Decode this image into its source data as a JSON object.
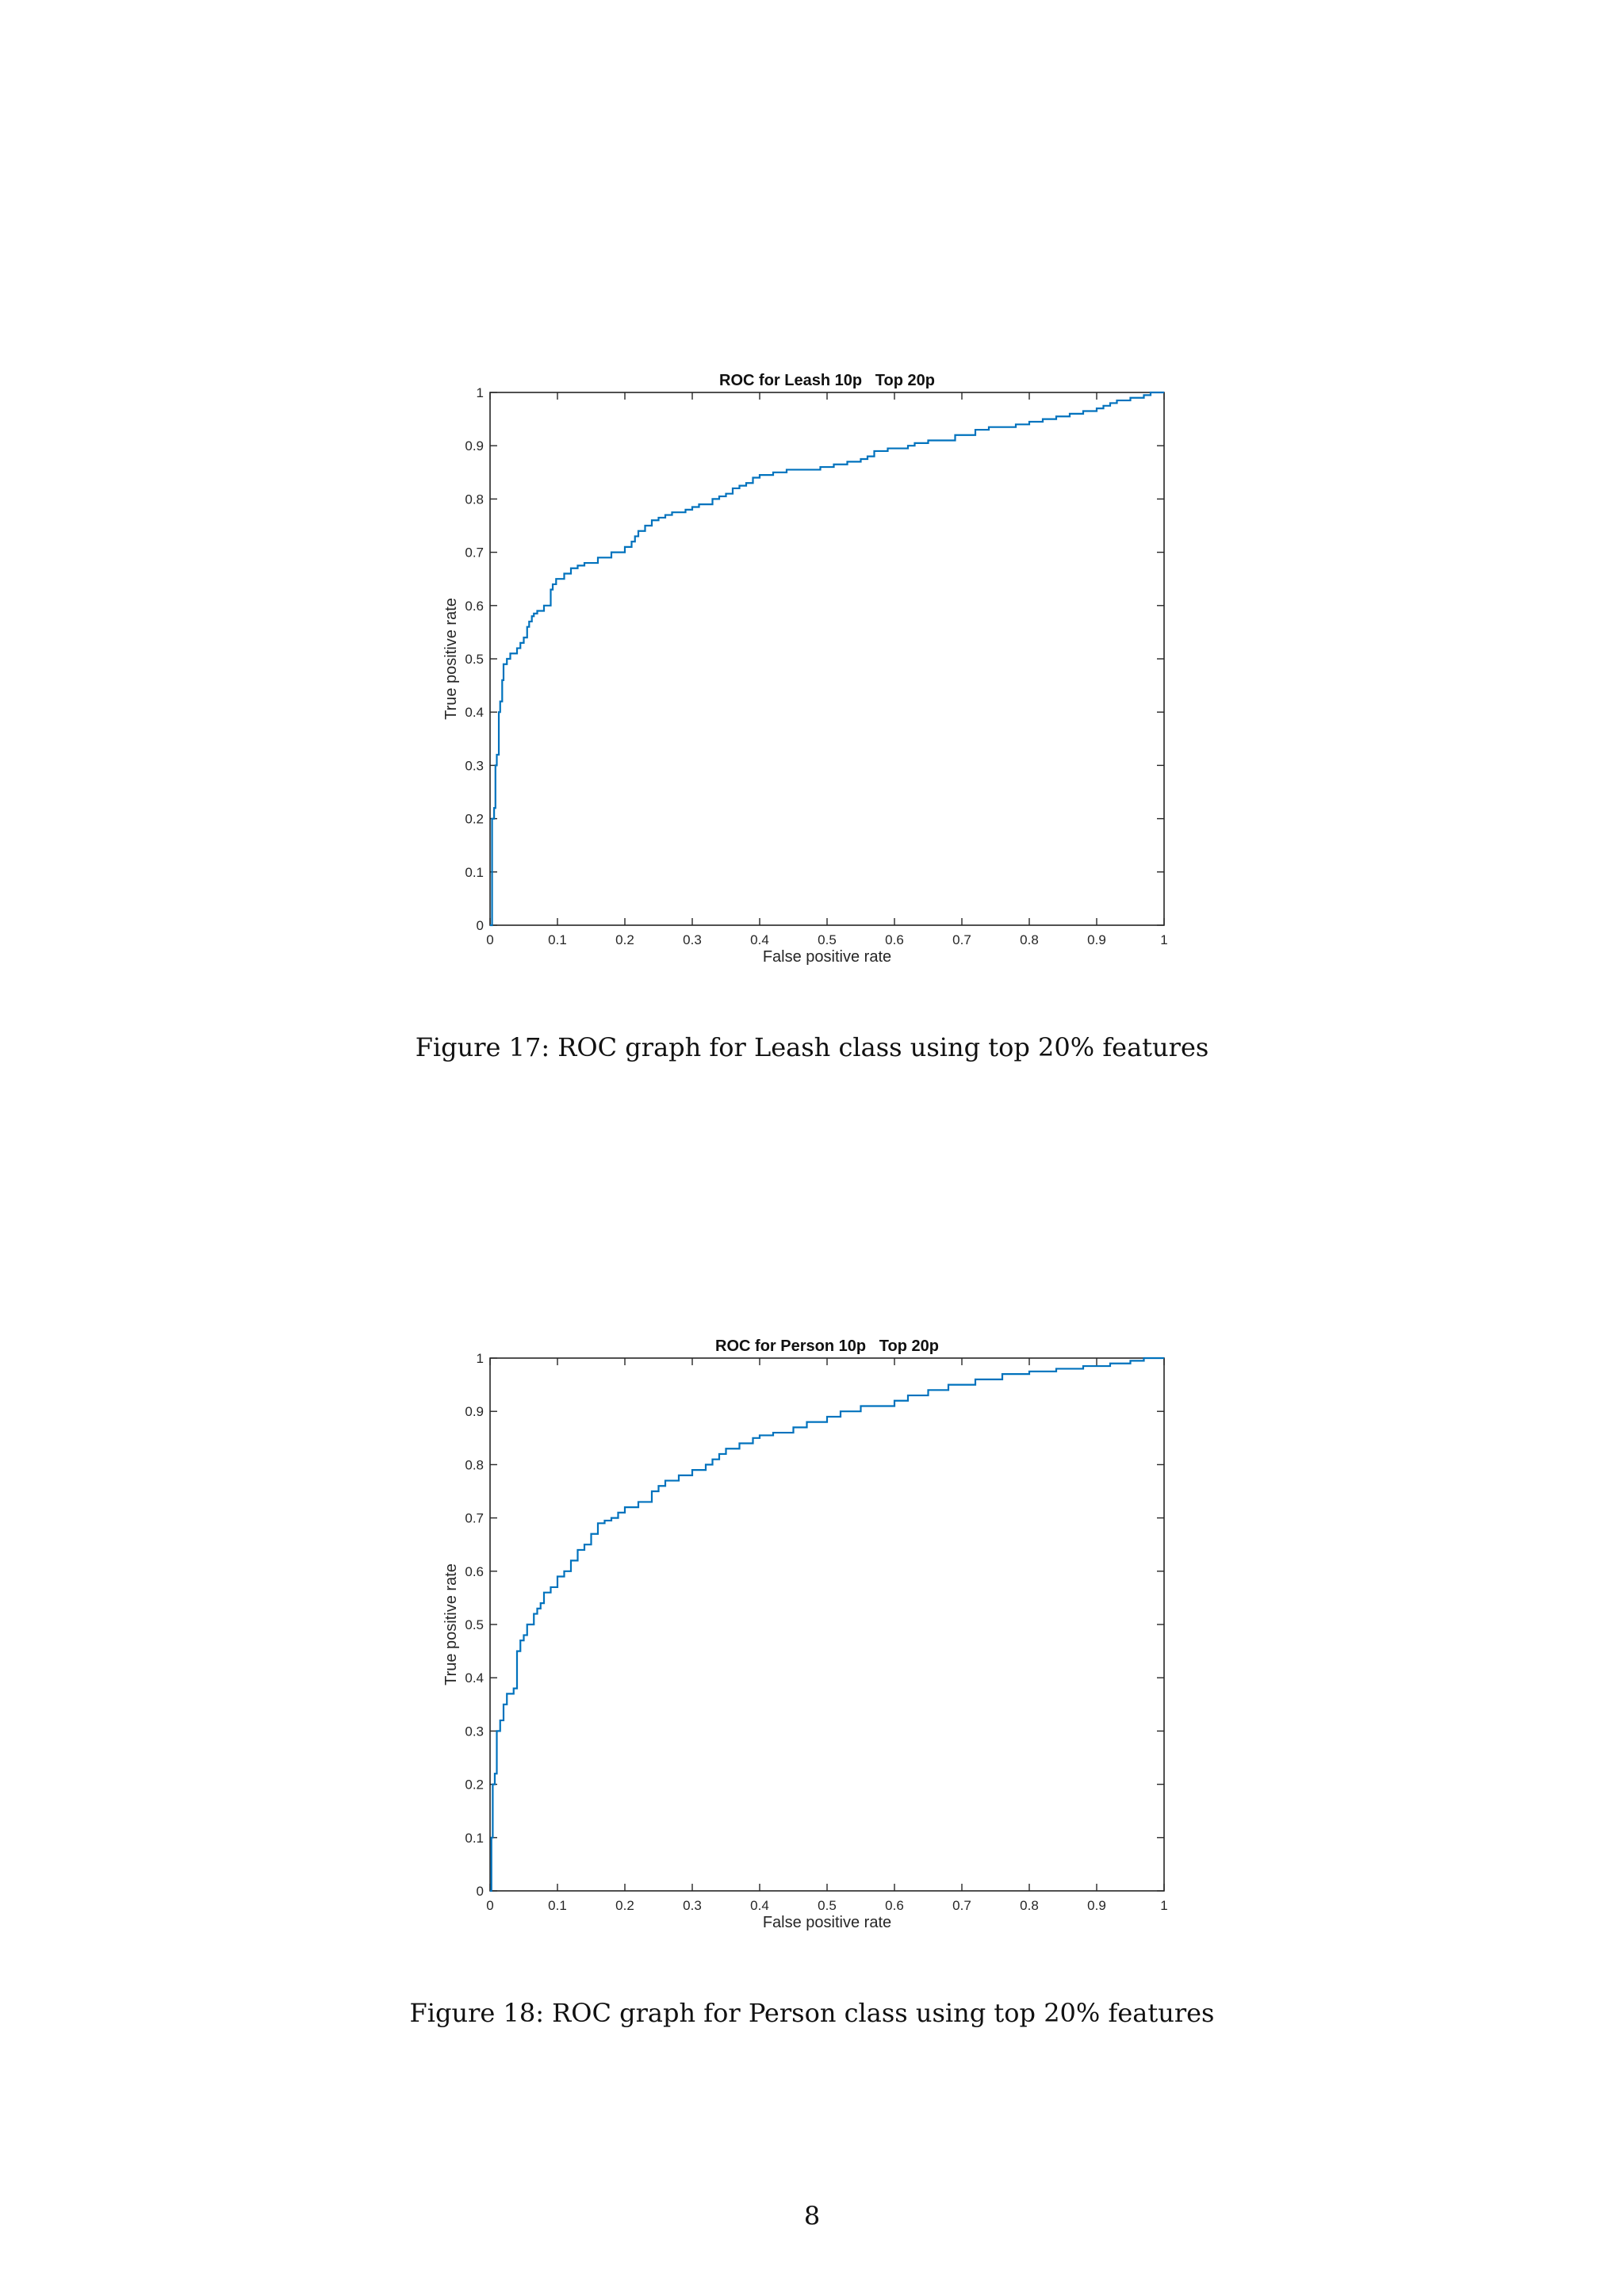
{
  "page_number": "8",
  "figures": [
    {
      "caption": "Figure 17: ROC graph for Leash class using top 20% features"
    },
    {
      "caption": "Figure 18: ROC graph for Person class using top 20% features"
    }
  ],
  "chart_data": [
    {
      "type": "line",
      "title": "ROC for Leash 10p   Top 20p",
      "xlabel": "False positive rate",
      "ylabel": "True positive rate",
      "xlim": [
        0,
        1
      ],
      "ylim": [
        0,
        1
      ],
      "xticks": [
        "0",
        "0.1",
        "0.2",
        "0.3",
        "0.4",
        "0.5",
        "0.6",
        "0.7",
        "0.8",
        "0.9",
        "1"
      ],
      "yticks": [
        "0",
        "0.1",
        "0.2",
        "0.3",
        "0.4",
        "0.5",
        "0.6",
        "0.7",
        "0.8",
        "0.9",
        "1"
      ],
      "grid": false,
      "line_color": "#0072BD",
      "series": [
        {
          "step": true,
          "x": [
            0,
            0.003,
            0.006,
            0.008,
            0.01,
            0.013,
            0.015,
            0.018,
            0.02,
            0.025,
            0.03,
            0.04,
            0.045,
            0.05,
            0.055,
            0.058,
            0.062,
            0.065,
            0.07,
            0.08,
            0.09,
            0.093,
            0.098,
            0.11,
            0.12,
            0.13,
            0.14,
            0.16,
            0.18,
            0.2,
            0.21,
            0.215,
            0.22,
            0.23,
            0.24,
            0.25,
            0.26,
            0.27,
            0.29,
            0.3,
            0.31,
            0.33,
            0.34,
            0.35,
            0.36,
            0.37,
            0.38,
            0.39,
            0.4,
            0.42,
            0.44,
            0.46,
            0.49,
            0.51,
            0.53,
            0.55,
            0.56,
            0.57,
            0.59,
            0.62,
            0.63,
            0.65,
            0.69,
            0.72,
            0.74,
            0.78,
            0.8,
            0.82,
            0.84,
            0.86,
            0.88,
            0.9,
            0.91,
            0.92,
            0.93,
            0.95,
            0.97,
            0.98,
            1
          ],
          "y": [
            0,
            0.2,
            0.22,
            0.3,
            0.32,
            0.4,
            0.42,
            0.46,
            0.49,
            0.5,
            0.51,
            0.52,
            0.53,
            0.54,
            0.56,
            0.57,
            0.58,
            0.585,
            0.59,
            0.6,
            0.63,
            0.64,
            0.65,
            0.66,
            0.67,
            0.675,
            0.68,
            0.69,
            0.7,
            0.71,
            0.72,
            0.73,
            0.74,
            0.75,
            0.76,
            0.765,
            0.77,
            0.775,
            0.78,
            0.785,
            0.79,
            0.8,
            0.805,
            0.81,
            0.82,
            0.825,
            0.83,
            0.84,
            0.845,
            0.85,
            0.855,
            0.855,
            0.86,
            0.865,
            0.87,
            0.875,
            0.88,
            0.89,
            0.895,
            0.9,
            0.905,
            0.91,
            0.92,
            0.93,
            0.935,
            0.94,
            0.945,
            0.95,
            0.955,
            0.96,
            0.965,
            0.97,
            0.975,
            0.98,
            0.985,
            0.99,
            0.995,
            1,
            1
          ]
        }
      ]
    },
    {
      "type": "line",
      "title": "ROC for Person 10p   Top 20p",
      "xlabel": "False positive rate",
      "ylabel": "True positive rate",
      "xlim": [
        0,
        1
      ],
      "ylim": [
        0,
        1
      ],
      "xticks": [
        "0",
        "0.1",
        "0.2",
        "0.3",
        "0.4",
        "0.5",
        "0.6",
        "0.7",
        "0.8",
        "0.9",
        "1"
      ],
      "yticks": [
        "0",
        "0.1",
        "0.2",
        "0.3",
        "0.4",
        "0.5",
        "0.6",
        "0.7",
        "0.8",
        "0.9",
        "1"
      ],
      "grid": false,
      "line_color": "#0072BD",
      "series": [
        {
          "step": true,
          "x": [
            0,
            0.002,
            0.004,
            0.007,
            0.01,
            0.015,
            0.02,
            0.025,
            0.035,
            0.04,
            0.045,
            0.05,
            0.055,
            0.065,
            0.07,
            0.075,
            0.08,
            0.09,
            0.1,
            0.11,
            0.12,
            0.13,
            0.14,
            0.15,
            0.16,
            0.17,
            0.18,
            0.19,
            0.2,
            0.22,
            0.24,
            0.25,
            0.26,
            0.28,
            0.3,
            0.32,
            0.33,
            0.34,
            0.35,
            0.37,
            0.39,
            0.4,
            0.42,
            0.45,
            0.47,
            0.5,
            0.52,
            0.55,
            0.6,
            0.62,
            0.65,
            0.68,
            0.72,
            0.76,
            0.8,
            0.84,
            0.88,
            0.92,
            0.95,
            0.97,
            1
          ],
          "y": [
            0,
            0.1,
            0.2,
            0.22,
            0.3,
            0.32,
            0.35,
            0.37,
            0.38,
            0.45,
            0.47,
            0.48,
            0.5,
            0.52,
            0.53,
            0.54,
            0.56,
            0.57,
            0.59,
            0.6,
            0.62,
            0.64,
            0.65,
            0.67,
            0.69,
            0.695,
            0.7,
            0.71,
            0.72,
            0.73,
            0.75,
            0.76,
            0.77,
            0.78,
            0.79,
            0.8,
            0.81,
            0.82,
            0.83,
            0.84,
            0.85,
            0.855,
            0.86,
            0.87,
            0.88,
            0.89,
            0.9,
            0.91,
            0.92,
            0.93,
            0.94,
            0.95,
            0.96,
            0.97,
            0.975,
            0.98,
            0.985,
            0.99,
            0.995,
            1,
            1
          ]
        }
      ]
    }
  ]
}
